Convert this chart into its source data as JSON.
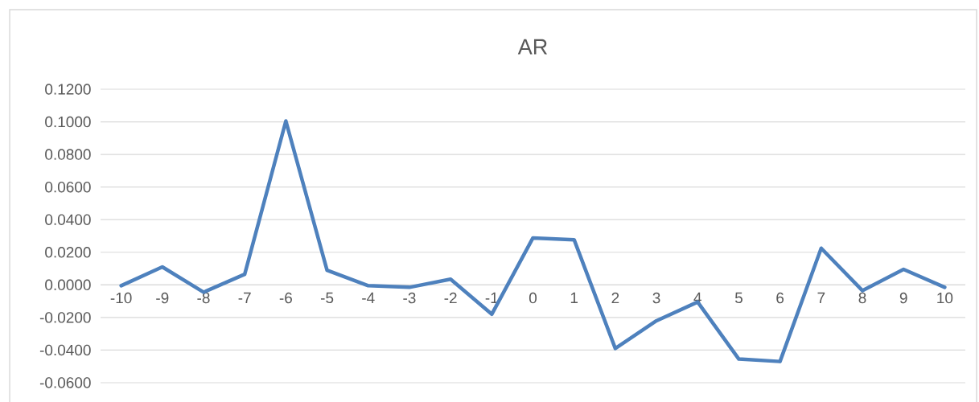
{
  "chart_data": {
    "type": "line",
    "title": "AR",
    "categories": [
      "-10",
      "-9",
      "-8",
      "-7",
      "-6",
      "-5",
      "-4",
      "-3",
      "-2",
      "-1",
      "0",
      "1",
      "2",
      "3",
      "4",
      "5",
      "6",
      "7",
      "8",
      "9",
      "10"
    ],
    "values": [
      -0.0005,
      0.011,
      -0.0045,
      0.0065,
      0.1005,
      0.009,
      -0.0005,
      -0.0015,
      0.0035,
      -0.018,
      0.0288,
      0.0277,
      -0.039,
      -0.022,
      -0.0105,
      -0.0455,
      -0.047,
      0.0225,
      -0.0035,
      0.0095,
      -0.0015
    ],
    "color": "#4e81bd",
    "line_style": "solid",
    "grid": "y",
    "ylim": [
      -0.06,
      0.12
    ],
    "yticks": [
      {
        "value": -0.06,
        "label": "-0.0600"
      },
      {
        "value": -0.04,
        "label": "-0.0400"
      },
      {
        "value": -0.02,
        "label": "-0.0200"
      },
      {
        "value": 0,
        "label": "0.0000"
      },
      {
        "value": 0.02,
        "label": "0.0200"
      },
      {
        "value": 0.04,
        "label": "0.0400"
      },
      {
        "value": 0.06,
        "label": "0.0600"
      },
      {
        "value": 0.08,
        "label": "0.0800"
      },
      {
        "value": 0.1,
        "label": "0.1000"
      },
      {
        "value": 0.12,
        "label": "0.1200"
      }
    ]
  }
}
